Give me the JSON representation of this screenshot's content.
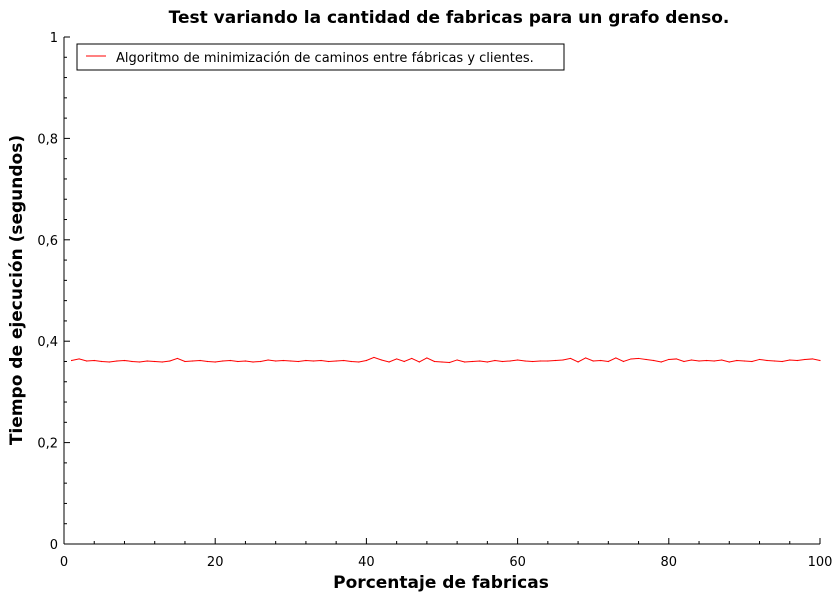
{
  "chart_data": {
    "type": "line",
    "title": "Test variando la cantidad de fabricas para un grafo denso.",
    "xlabel": "Porcentaje de fabricas",
    "ylabel": "Tiempo de ejecución (segundos)",
    "xlim": [
      0,
      100
    ],
    "ylim": [
      0,
      1
    ],
    "x_ticks": [
      0,
      20,
      40,
      60,
      80,
      100
    ],
    "x_tick_labels": [
      "0",
      "20",
      "40",
      "60",
      "80",
      "100"
    ],
    "y_ticks": [
      0,
      0.2,
      0.4,
      0.6,
      0.8,
      1
    ],
    "y_tick_labels": [
      "0",
      "0,2",
      "0,4",
      "0,6",
      "0,8",
      "1"
    ],
    "grid": false,
    "legend_position": "top-left",
    "series": [
      {
        "name": "Algoritmo de minimización de caminos entre fábricas y clientes.",
        "color": "#ff0000",
        "x": [
          1,
          2,
          3,
          4,
          5,
          6,
          7,
          8,
          9,
          10,
          11,
          12,
          13,
          14,
          15,
          16,
          17,
          18,
          19,
          20,
          21,
          22,
          23,
          24,
          25,
          26,
          27,
          28,
          29,
          30,
          31,
          32,
          33,
          34,
          35,
          36,
          37,
          38,
          39,
          40,
          41,
          42,
          43,
          44,
          45,
          46,
          47,
          48,
          49,
          50,
          51,
          52,
          53,
          54,
          55,
          56,
          57,
          58,
          59,
          60,
          61,
          62,
          63,
          64,
          65,
          66,
          67,
          68,
          69,
          70,
          71,
          72,
          73,
          74,
          75,
          76,
          77,
          78,
          79,
          80,
          81,
          82,
          83,
          84,
          85,
          86,
          87,
          88,
          89,
          90,
          91,
          92,
          93,
          94,
          95,
          96,
          97,
          98,
          99,
          100
        ],
        "values": [
          0.362,
          0.365,
          0.361,
          0.362,
          0.36,
          0.359,
          0.361,
          0.362,
          0.36,
          0.359,
          0.361,
          0.36,
          0.359,
          0.361,
          0.366,
          0.36,
          0.361,
          0.362,
          0.36,
          0.359,
          0.361,
          0.362,
          0.36,
          0.361,
          0.359,
          0.36,
          0.363,
          0.361,
          0.362,
          0.361,
          0.36,
          0.362,
          0.361,
          0.362,
          0.36,
          0.361,
          0.362,
          0.36,
          0.359,
          0.362,
          0.368,
          0.363,
          0.359,
          0.365,
          0.36,
          0.366,
          0.359,
          0.367,
          0.36,
          0.359,
          0.358,
          0.363,
          0.359,
          0.36,
          0.361,
          0.359,
          0.362,
          0.36,
          0.361,
          0.363,
          0.361,
          0.36,
          0.361,
          0.361,
          0.362,
          0.363,
          0.366,
          0.359,
          0.367,
          0.361,
          0.362,
          0.36,
          0.367,
          0.36,
          0.365,
          0.366,
          0.364,
          0.362,
          0.359,
          0.364,
          0.365,
          0.36,
          0.363,
          0.361,
          0.362,
          0.361,
          0.363,
          0.359,
          0.362,
          0.361,
          0.36,
          0.364,
          0.362,
          0.361,
          0.36,
          0.363,
          0.362,
          0.364,
          0.365,
          0.362
        ]
      }
    ]
  }
}
